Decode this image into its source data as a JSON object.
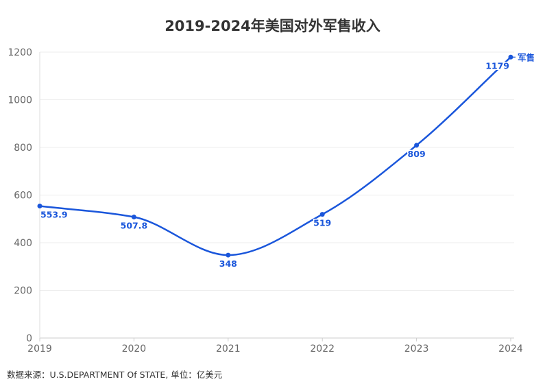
{
  "chart_data": {
    "type": "line",
    "title": "2019-2024年美国对外军售收入",
    "x": [
      "2019",
      "2020",
      "2021",
      "2022",
      "2023",
      "2024"
    ],
    "series": [
      {
        "name": "军售",
        "values": [
          553.9,
          507.8,
          348,
          519,
          809,
          1179
        ],
        "color": "#1a56db"
      }
    ],
    "ylim": [
      0,
      1200
    ],
    "yticks": [
      0,
      200,
      400,
      600,
      800,
      1000,
      1200
    ],
    "grid": true,
    "xlabel": "",
    "ylabel": ""
  },
  "source": "数据来源：U.S.DEPARTMENT Of STATE, 单位：亿美元"
}
